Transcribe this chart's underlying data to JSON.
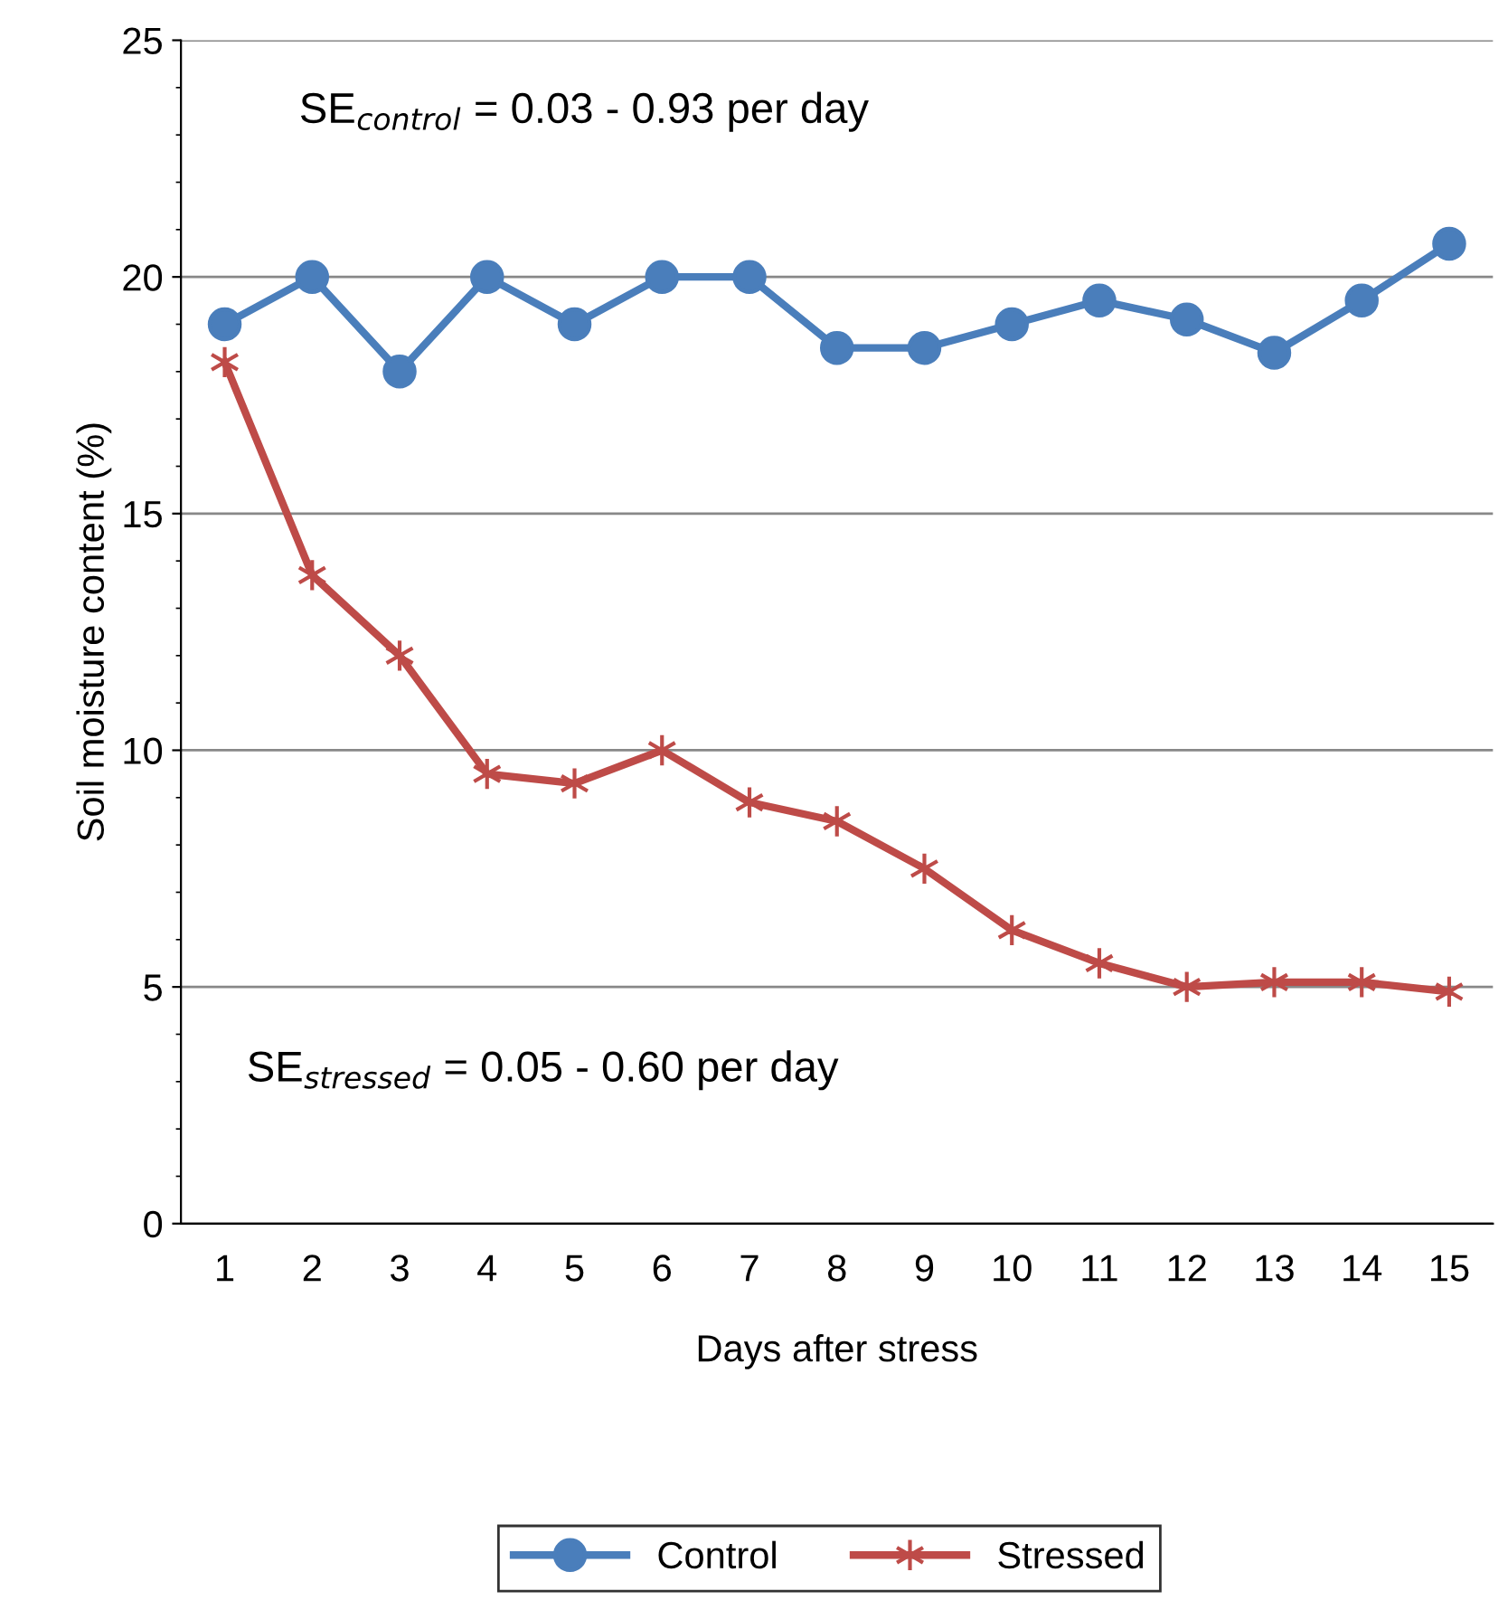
{
  "chart_data": {
    "type": "line",
    "xlabel": "Days after stress",
    "ylabel": "Soil moisture content (%)",
    "categories": [
      "1",
      "2",
      "3",
      "4",
      "5",
      "6",
      "7",
      "8",
      "9",
      "10",
      "11",
      "12",
      "13",
      "14",
      "15"
    ],
    "series": [
      {
        "name": "Control",
        "color": "#4a7ebb",
        "marker": "circle",
        "values": [
          19.0,
          20.0,
          18.0,
          20.0,
          19.0,
          20.0,
          20.0,
          18.5,
          18.5,
          19.0,
          19.5,
          19.1,
          18.4,
          19.5,
          20.7
        ]
      },
      {
        "name": "Stressed",
        "color": "#be4b48",
        "marker": "cross",
        "values": [
          18.2,
          13.7,
          12.0,
          9.5,
          9.3,
          10.0,
          8.9,
          8.5,
          7.5,
          6.2,
          5.5,
          5.0,
          5.1,
          5.1,
          4.9
        ]
      }
    ],
    "ylim": [
      0,
      25
    ],
    "yticks": [
      0,
      5,
      10,
      15,
      20,
      25
    ],
    "grid": "y",
    "legend": "bottom",
    "line_style": "solid",
    "annotations": [
      "SE$_{control}$ = 0.03 - 0.93 per day",
      "SE$_{stressed}$ = 0.05 - 0.60 per day"
    ]
  }
}
